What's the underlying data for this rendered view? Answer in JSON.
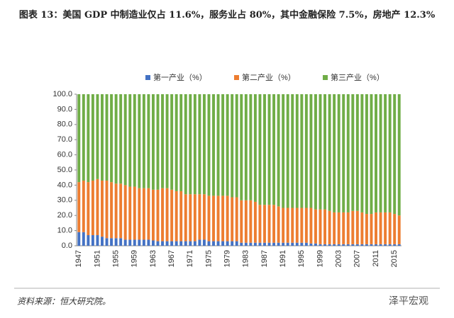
{
  "chart_data": {
    "type": "stacked_bar",
    "title": "图表 13：美国 GDP 中制造业仅占 11.6%，服务业占 80%，其中金融保险 7.5%，房地产 12.3%",
    "categories": [
      "1947",
      null,
      null,
      null,
      "1951",
      null,
      null,
      null,
      "1955",
      null,
      null,
      null,
      "1959",
      null,
      null,
      null,
      "1963",
      null,
      null,
      null,
      "1967",
      null,
      null,
      null,
      "1971",
      null,
      null,
      null,
      "1975",
      null,
      null,
      null,
      "1979",
      null,
      null,
      null,
      "1983",
      null,
      null,
      null,
      "1987",
      null,
      null,
      null,
      "1991",
      null,
      null,
      null,
      "1995",
      null,
      null,
      null,
      "1999",
      null,
      null,
      null,
      "2003",
      null,
      null,
      null,
      "2007",
      null,
      null,
      null,
      "2011",
      null,
      null,
      null,
      "2015",
      null
    ],
    "series": [
      {
        "name": "第一产业（%）",
        "color": "#4472c4",
        "values": [
          9,
          9,
          7,
          7,
          7,
          6,
          5,
          5,
          5,
          5,
          4,
          4,
          4,
          4,
          4,
          4,
          3.5,
          3,
          3,
          3,
          3,
          3,
          3,
          3,
          3,
          3,
          4,
          4,
          3,
          3,
          3,
          3,
          3,
          3,
          3,
          2,
          2,
          2,
          2,
          2,
          2,
          2,
          2,
          2,
          2,
          2,
          2,
          2,
          2,
          2,
          1.5,
          1.5,
          1,
          1,
          1,
          1,
          1,
          1,
          1,
          1,
          1,
          1,
          1,
          1,
          1,
          1,
          1,
          1,
          1,
          1
        ]
      },
      {
        "name": "第二产业（%）",
        "color": "#ed7d31",
        "values": [
          33,
          34,
          35,
          36,
          37,
          37,
          38,
          37,
          36,
          36,
          36,
          35,
          35,
          34,
          34,
          34,
          33.5,
          34,
          35,
          35,
          34,
          33,
          33,
          31,
          31,
          31,
          30,
          30,
          30,
          30,
          30,
          30,
          30,
          29,
          29,
          28,
          28,
          28,
          27,
          25,
          25,
          25,
          25,
          24,
          23,
          23,
          23,
          23,
          23,
          23,
          23.5,
          22.5,
          23,
          23,
          22,
          21,
          21,
          21,
          21,
          22,
          22,
          21,
          20,
          20,
          21,
          21,
          21,
          21,
          20,
          19
        ]
      },
      {
        "name": "第三产业（%）",
        "color": "#70ad47",
        "values": [
          58,
          57,
          58,
          57,
          56,
          57,
          57,
          58,
          59,
          59,
          60,
          61,
          61,
          62,
          62,
          62,
          63,
          63,
          62,
          62,
          63,
          64,
          64,
          66,
          66,
          66,
          66,
          66,
          67,
          67,
          67,
          67,
          67,
          68,
          68,
          70,
          70,
          70,
          71,
          73,
          73,
          73,
          73,
          74,
          75,
          75,
          75,
          75,
          75,
          75,
          75,
          76,
          76,
          76,
          77,
          78,
          78,
          78,
          78,
          77,
          77,
          78,
          79,
          79,
          78,
          78,
          78,
          78,
          79,
          80
        ]
      }
    ],
    "ylim": [
      0,
      100
    ],
    "yticks": [
      {
        "value": 0,
        "label": "0.0"
      },
      {
        "value": 10,
        "label": "10.0"
      },
      {
        "value": 20,
        "label": "20.0"
      },
      {
        "value": 30,
        "label": "30.0"
      },
      {
        "value": 40,
        "label": "40.0"
      },
      {
        "value": 50,
        "label": "50.0"
      },
      {
        "value": 60,
        "label": "60.0"
      },
      {
        "value": 70,
        "label": "70.0"
      },
      {
        "value": 80,
        "label": "80.0"
      },
      {
        "value": 90,
        "label": "90.0"
      },
      {
        "value": 100,
        "label": "100.0"
      }
    ],
    "legend": "top",
    "source": "资料来源：恒大研究院。",
    "watermark": "泽平宏观"
  }
}
